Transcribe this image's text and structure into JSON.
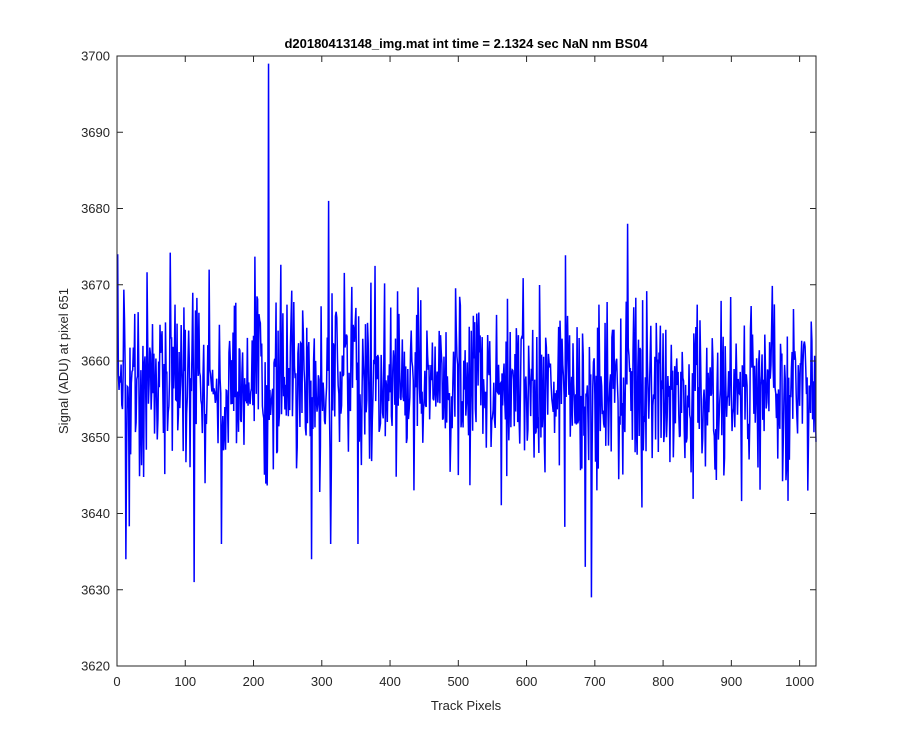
{
  "chart_data": {
    "type": "line",
    "title": "d20180413148_img.mat int time = 2.1324 sec  NaN nm BS04",
    "xlabel": "Track Pixels",
    "ylabel": "Signal (ADU) at pixel 651",
    "xlim": [
      0,
      1024
    ],
    "ylim": [
      3620,
      3700
    ],
    "x_ticks": [
      0,
      100,
      200,
      300,
      400,
      500,
      600,
      700,
      800,
      900,
      1000
    ],
    "y_ticks": [
      3620,
      3630,
      3640,
      3650,
      3660,
      3670,
      3680,
      3690,
      3700
    ],
    "grid": false,
    "legend": "none",
    "series": [
      {
        "color": "#0000ff",
        "x_start": 1,
        "x_step": 1,
        "n_points": 1024,
        "approx_mean": 3657,
        "approx_std": 6,
        "notable_points": [
          {
            "x": 1,
            "y": 3674
          },
          {
            "x": 13,
            "y": 3634
          },
          {
            "x": 113,
            "y": 3631
          },
          {
            "x": 153,
            "y": 3636
          },
          {
            "x": 222,
            "y": 3699
          },
          {
            "x": 285,
            "y": 3634
          },
          {
            "x": 310,
            "y": 3681
          },
          {
            "x": 686,
            "y": 3633
          },
          {
            "x": 695,
            "y": 3629
          },
          {
            "x": 748,
            "y": 3678
          },
          {
            "x": 1012,
            "y": 3643
          }
        ]
      }
    ]
  }
}
